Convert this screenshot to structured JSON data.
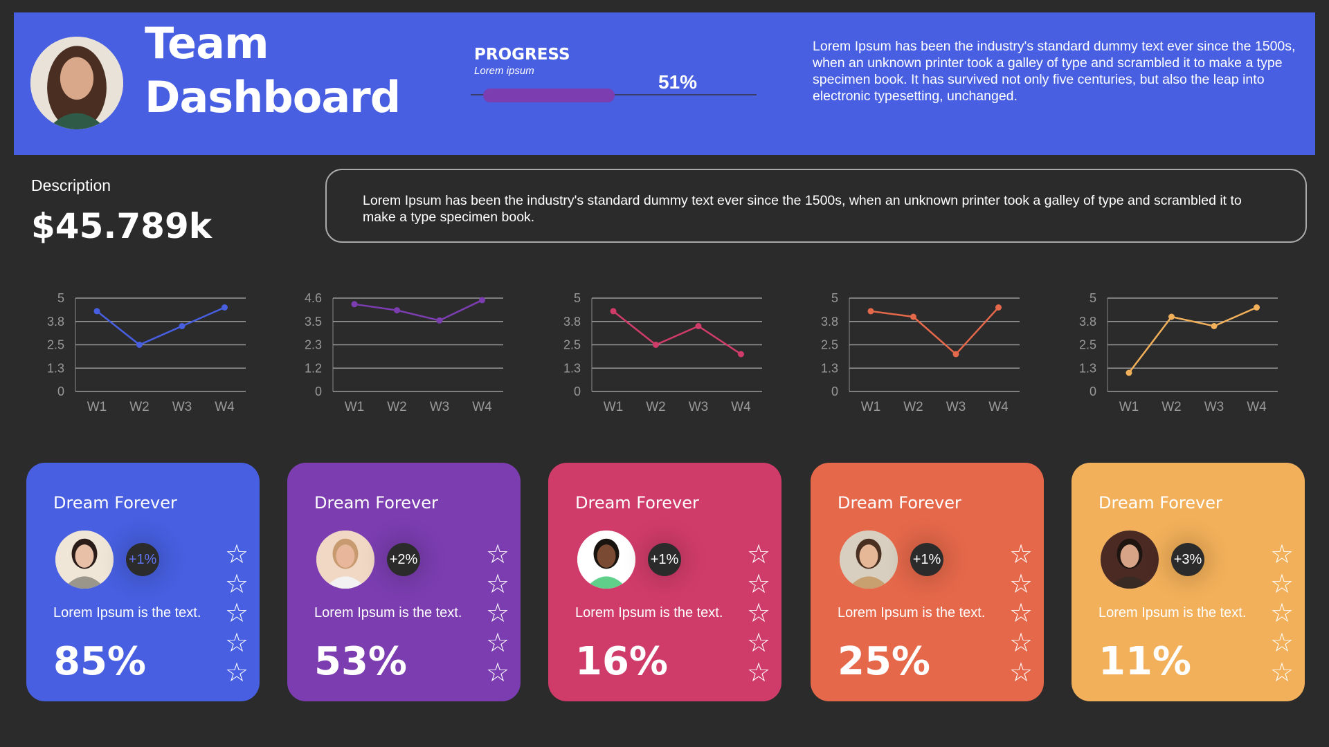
{
  "header": {
    "title_line1": "Team",
    "title_line2": "Dashboard",
    "progress_label": "PROGRESS",
    "progress_sub": "Lorem ipsum",
    "progress_value": "51%",
    "progress_fraction": 0.51,
    "text": "Lorem Ipsum has been the industry's standard dummy text ever since the 1500s, when an unknown printer took a galley of type and scrambled it to make a type specimen book. It has survived not only five centuries, but also the leap into electronic typesetting, unchanged."
  },
  "description": {
    "label": "Description",
    "value": "$45.789k",
    "text": "Lorem Ipsum has been the industry's standard dummy text ever since the 1500s, when an unknown printer took a galley of type and scrambled it to make a type specimen book."
  },
  "colors": {
    "background": "#2b2b2b",
    "blue": "#475fe0",
    "purple": "#7b3db0",
    "pink": "#d03c6a",
    "orange": "#e5684a",
    "yellow": "#f2b05a"
  },
  "chart_data": [
    {
      "type": "line",
      "categories": [
        "W1",
        "W2",
        "W3",
        "W4"
      ],
      "values": [
        4.3,
        2.5,
        3.5,
        4.5
      ],
      "yticks": [
        "0",
        "1.3",
        "2.5",
        "3.8",
        "5"
      ],
      "ylim": [
        0,
        5
      ],
      "grid": true,
      "color": "#475fe0"
    },
    {
      "type": "line",
      "categories": [
        "W1",
        "W2",
        "W3",
        "W4"
      ],
      "values": [
        4.3,
        4.0,
        3.5,
        4.5
      ],
      "yticks": [
        "0",
        "1.2",
        "2.3",
        "3.5",
        "4.6"
      ],
      "ylim": [
        0,
        4.6
      ],
      "grid": true,
      "color": "#7b3db0"
    },
    {
      "type": "line",
      "categories": [
        "W1",
        "W2",
        "W3",
        "W4"
      ],
      "values": [
        4.3,
        2.5,
        3.5,
        2.0
      ],
      "yticks": [
        "0",
        "1.3",
        "2.5",
        "3.8",
        "5"
      ],
      "ylim": [
        0,
        5
      ],
      "grid": true,
      "color": "#d03c6a"
    },
    {
      "type": "line",
      "categories": [
        "W1",
        "W2",
        "W3",
        "W4"
      ],
      "values": [
        4.3,
        4.0,
        2.0,
        4.5
      ],
      "yticks": [
        "0",
        "1.3",
        "2.5",
        "3.8",
        "5"
      ],
      "ylim": [
        0,
        5
      ],
      "grid": true,
      "color": "#e5684a"
    },
    {
      "type": "line",
      "categories": [
        "W1",
        "W2",
        "W3",
        "W4"
      ],
      "values": [
        1.0,
        4.0,
        3.5,
        4.5
      ],
      "yticks": [
        "0",
        "1.3",
        "2.5",
        "3.8",
        "5"
      ],
      "ylim": [
        0,
        5
      ],
      "grid": true,
      "color": "#f2b05a"
    }
  ],
  "cards": [
    {
      "title": "Dream Forever",
      "badge": "+1%",
      "text": "Lorem Ipsum is the text.",
      "percent": "85%",
      "color": "#475fe0",
      "badge_text_color": "#5f74ee",
      "stars": 5
    },
    {
      "title": "Dream Forever",
      "badge": "+2%",
      "text": "Lorem Ipsum is the text.",
      "percent": "53%",
      "color": "#7b3db0",
      "badge_text_color": "#ffffff",
      "stars": 5
    },
    {
      "title": "Dream Forever",
      "badge": "+1%",
      "text": "Lorem Ipsum is the text.",
      "percent": "16%",
      "color": "#d03c6a",
      "badge_text_color": "#ffffff",
      "stars": 5
    },
    {
      "title": "Dream Forever",
      "badge": "+1%",
      "text": "Lorem Ipsum is the text.",
      "percent": "25%",
      "color": "#e5684a",
      "badge_text_color": "#ffffff",
      "stars": 5
    },
    {
      "title": "Dream Forever",
      "badge": "+3%",
      "text": "Lorem Ipsum is the text.",
      "percent": "11%",
      "color": "#f2b05a",
      "badge_text_color": "#ffffff",
      "stars": 5
    }
  ]
}
